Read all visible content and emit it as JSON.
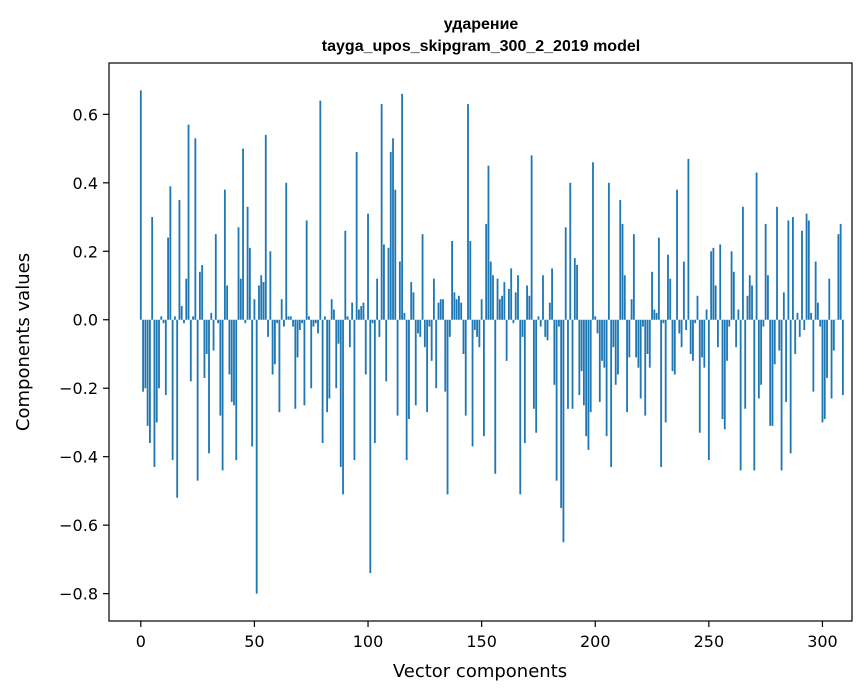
{
  "chart_data": {
    "type": "bar",
    "title_line1": "ударение",
    "title_line2": "tayga_upos_skipgram_300_2_2019 model",
    "xlabel": "Vector components",
    "ylabel": "Components values",
    "xlim": [
      -14,
      313
    ],
    "ylim": [
      -0.88,
      0.75
    ],
    "xticks": [
      0,
      50,
      100,
      150,
      200,
      250,
      300
    ],
    "xtick_labels": [
      "0",
      "50",
      "100",
      "150",
      "200",
      "250",
      "300"
    ],
    "yticks": [
      -0.8,
      -0.6,
      -0.4,
      -0.2,
      0.0,
      0.2,
      0.4,
      0.6
    ],
    "ytick_labels": [
      "−0.8",
      "−0.6",
      "−0.4",
      "−0.2",
      "0.0",
      "0.2",
      "0.4",
      "0.6"
    ],
    "bar_color": "#1f77b4",
    "grid": false,
    "legend": "none",
    "values": [
      0.67,
      -0.21,
      -0.2,
      -0.31,
      -0.36,
      0.3,
      -0.43,
      -0.3,
      -0.2,
      0.01,
      -0.01,
      -0.22,
      0.24,
      0.39,
      -0.41,
      0.01,
      -0.52,
      0.35,
      0.04,
      -0.01,
      0.12,
      0.57,
      -0.18,
      0.01,
      0.53,
      -0.47,
      0.14,
      0.16,
      -0.17,
      -0.1,
      -0.39,
      0.02,
      -0.09,
      0.25,
      -0.01,
      -0.28,
      -0.44,
      0.38,
      0.1,
      -0.16,
      -0.24,
      -0.25,
      -0.41,
      0.27,
      0.12,
      0.5,
      -0.01,
      0.33,
      0.21,
      -0.37,
      0.06,
      -0.8,
      0.1,
      0.13,
      0.11,
      0.54,
      -0.05,
      0.2,
      -0.16,
      -0.13,
      -0.01,
      -0.27,
      0.06,
      -0.02,
      0.4,
      0.01,
      0.01,
      -0.02,
      -0.26,
      -0.11,
      -0.03,
      -0.01,
      -0.25,
      0.29,
      0.01,
      -0.2,
      -0.02,
      -0.01,
      -0.04,
      0.64,
      -0.36,
      0.01,
      -0.27,
      -0.23,
      0.06,
      0.03,
      -0.2,
      -0.07,
      -0.43,
      -0.51,
      0.26,
      0.01,
      -0.08,
      0.05,
      -0.41,
      0.49,
      0.03,
      0.04,
      0.05,
      -0.16,
      0.31,
      -0.74,
      -0.01,
      -0.36,
      0.12,
      -0.05,
      0.63,
      0.22,
      -0.18,
      0.21,
      0.49,
      0.53,
      0.38,
      -0.28,
      0.17,
      0.66,
      0.02,
      -0.41,
      -0.29,
      0.11,
      0.08,
      -0.25,
      -0.04,
      -0.05,
      0.25,
      -0.08,
      -0.27,
      -0.02,
      -0.12,
      0.12,
      -0.2,
      0.05,
      0.06,
      0.06,
      -0.21,
      -0.51,
      -0.05,
      0.23,
      0.08,
      0.06,
      0.07,
      0.05,
      -0.1,
      -0.28,
      0.63,
      0.23,
      -0.37,
      -0.03,
      -0.05,
      -0.08,
      0.06,
      -0.34,
      0.28,
      0.45,
      0.17,
      0.13,
      -0.45,
      0.12,
      0.06,
      0.07,
      0.11,
      -0.12,
      0.09,
      0.15,
      -0.01,
      0.08,
      0.13,
      -0.51,
      -0.05,
      -0.36,
      0.1,
      0.07,
      0.48,
      -0.26,
      -0.33,
      0.01,
      -0.02,
      0.13,
      -0.05,
      -0.06,
      0.05,
      0.15,
      -0.19,
      -0.47,
      -0.02,
      -0.55,
      -0.65,
      0.27,
      -0.26,
      0.4,
      -0.26,
      0.18,
      0.16,
      -0.22,
      -0.15,
      -0.25,
      -0.34,
      -0.38,
      -0.27,
      0.46,
      0.01,
      -0.04,
      -0.24,
      -0.12,
      -0.14,
      -0.34,
      0.4,
      -0.43,
      -0.08,
      -0.19,
      -0.16,
      0.35,
      0.28,
      0.13,
      -0.27,
      -0.11,
      0.06,
      0.25,
      -0.11,
      -0.14,
      -0.23,
      -0.02,
      -0.28,
      -0.1,
      -0.14,
      0.14,
      0.03,
      0.02,
      0.24,
      -0.43,
      -0.01,
      -0.3,
      0.19,
      0.12,
      -0.15,
      -0.16,
      0.38,
      -0.04,
      -0.08,
      0.17,
      -0.03,
      0.47,
      -0.1,
      -0.12,
      -0.01,
      0.07,
      -0.33,
      -0.11,
      -0.14,
      0.03,
      -0.41,
      0.2,
      0.21,
      0.1,
      -0.08,
      0.22,
      -0.29,
      -0.32,
      -0.12,
      -0.02,
      0.2,
      0.14,
      -0.08,
      0.03,
      -0.44,
      0.33,
      -0.26,
      0.07,
      0.13,
      0.1,
      -0.44,
      0.43,
      -0.23,
      -0.19,
      -0.02,
      0.28,
      0.13,
      -0.31,
      -0.31,
      -0.13,
      0.33,
      -0.09,
      -0.44,
      0.08,
      -0.24,
      0.29,
      -0.39,
      0.3,
      -0.1,
      0.02,
      -0.05,
      0.26,
      -0.03,
      0.31,
      0.29,
      0.02,
      -0.21,
      0.17,
      0.05,
      -0.02,
      -0.3,
      -0.29,
      -0.17,
      0.12,
      -0.23,
      -0.09,
      0.0,
      0.25,
      0.28,
      -0.22
    ]
  }
}
